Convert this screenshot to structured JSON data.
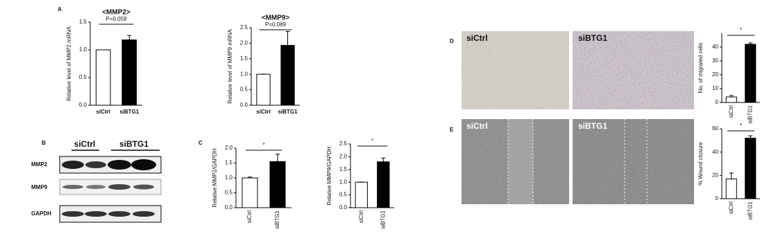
{
  "panel_labels": [
    "A",
    "B",
    "C",
    "D",
    "E"
  ],
  "blot": {
    "columns": [
      "siCtrl",
      "siBTG1"
    ],
    "rows": [
      "MMP2",
      "MMP9",
      "GAPDH"
    ]
  },
  "micrographs": {
    "migration": [
      "siCtrl",
      "siBTG1"
    ],
    "wound": [
      "siCtrl",
      "siBTG1"
    ]
  },
  "chart_data": [
    {
      "type": "bar",
      "title": "<MMP2>",
      "y_label": "Relative level of MMP2 mRNA",
      "categories": [
        "siCtrl",
        "siBTG1"
      ],
      "values": [
        1.0,
        1.18
      ],
      "errors": [
        0,
        0.08
      ],
      "colors": [
        "#ffffff",
        "#000000"
      ],
      "ylim": [
        0,
        1.5
      ],
      "yticks": [
        {
          "value": 0,
          "label": "0.0"
        },
        {
          "value": 0.5,
          "label": "0.5"
        },
        {
          "value": 1,
          "label": "1.0"
        },
        {
          "value": 1.5,
          "label": "1.5"
        }
      ],
      "annotation": "P=0.059",
      "rotate_labels": false
    },
    {
      "type": "bar",
      "title": "<MMP9>",
      "y_label": "Relative level of MMP9 mRNA",
      "categories": [
        "siCtrl",
        "siBTG1"
      ],
      "values": [
        1.0,
        1.93
      ],
      "errors": [
        0,
        0.45
      ],
      "colors": [
        "#ffffff",
        "#000000"
      ],
      "ylim": [
        0,
        2.5
      ],
      "yticks": [
        {
          "value": 0,
          "label": "0.0"
        },
        {
          "value": 0.5,
          "label": "0.5"
        },
        {
          "value": 1,
          "label": "1.0"
        },
        {
          "value": 1.5,
          "label": "1.5"
        },
        {
          "value": 2,
          "label": "2.0"
        },
        {
          "value": 2.5,
          "label": "2.5"
        }
      ],
      "annotation": "P=0.089",
      "rotate_labels": false
    },
    {
      "type": "bar",
      "y_label": "Relative MMP2/GAPDH",
      "categories": [
        "siCtrl",
        "siBTG1"
      ],
      "values": [
        1.0,
        1.55
      ],
      "errors": [
        0.03,
        0.25
      ],
      "colors": [
        "#ffffff",
        "#000000"
      ],
      "ylim": [
        0,
        2
      ],
      "yticks": [
        {
          "value": 0,
          "label": "0.0"
        },
        {
          "value": 0.5,
          "label": "0.5"
        },
        {
          "value": 1,
          "label": "1.0"
        },
        {
          "value": 1.5,
          "label": "1.5"
        },
        {
          "value": 2,
          "label": "2.0"
        }
      ],
      "annotation": "*",
      "rotate_labels": true
    },
    {
      "type": "bar",
      "y_label": "Relative MMP9/GAPDH",
      "categories": [
        "siCtrl",
        "siBTG1"
      ],
      "values": [
        1.0,
        1.8
      ],
      "errors": [
        0.01,
        0.15
      ],
      "colors": [
        "#ffffff",
        "#000000"
      ],
      "ylim": [
        0,
        2.5
      ],
      "yticks": [
        {
          "value": 0,
          "label": "0.0"
        },
        {
          "value": 0.5,
          "label": "0.5"
        },
        {
          "value": 1,
          "label": "1.0"
        },
        {
          "value": 1.5,
          "label": "1.5"
        },
        {
          "value": 2,
          "label": "2.0"
        },
        {
          "value": 2.5,
          "label": "2.5"
        }
      ],
      "annotation": "*",
      "rotate_labels": true
    },
    {
      "type": "bar",
      "y_label": "No. of migrated cells",
      "categories": [
        "siCtrl",
        "siBTG1"
      ],
      "values": [
        4,
        42
      ],
      "errors": [
        1,
        1
      ],
      "colors": [
        "#ffffff",
        "#000000"
      ],
      "ylim": [
        0,
        50
      ],
      "yticks": [
        0,
        10,
        20,
        30,
        40
      ],
      "annotation": "*",
      "rotate_labels": true
    },
    {
      "type": "bar",
      "y_label": "% Wound closure",
      "categories": [
        "siCtrl",
        "siBTG1"
      ],
      "values": [
        17,
        52
      ],
      "errors": [
        5,
        2
      ],
      "colors": [
        "#ffffff",
        "#000000"
      ],
      "ylim": [
        0,
        60
      ],
      "yticks": [
        0,
        20,
        40,
        60
      ],
      "annotation": "*",
      "rotate_labels": true
    }
  ]
}
